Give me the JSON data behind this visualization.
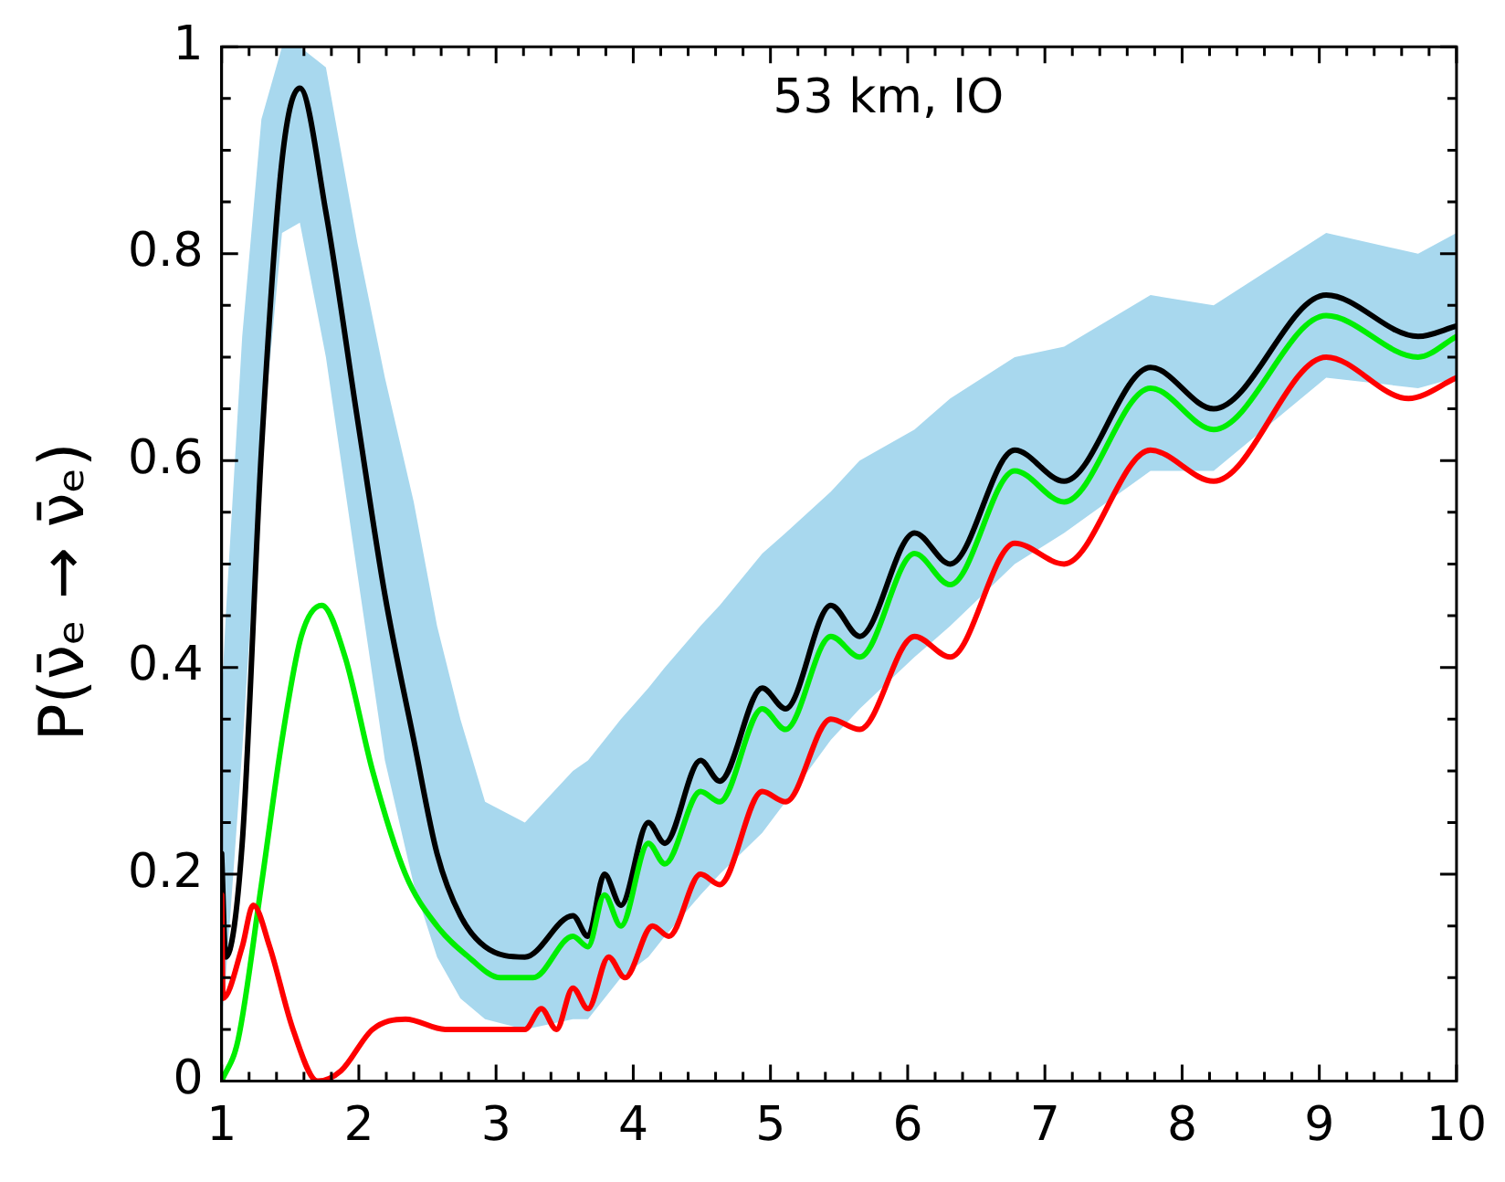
{
  "chart_data": {
    "type": "line",
    "ylabel": "P(ν̄ₑ → ν̄ₑ)",
    "annotations": [
      "53 km, IO"
    ],
    "xlim": [
      1,
      10
    ],
    "xticks": [
      1,
      2,
      3,
      4,
      5,
      6,
      7,
      8,
      9,
      10
    ],
    "ylim": [
      0,
      1
    ],
    "yticks": [
      0,
      {
        "value": 0.2,
        "label": "0.2"
      },
      {
        "value": 0.4,
        "label": "0.4"
      },
      {
        "value": 0.6,
        "label": "0.6"
      },
      {
        "value": 0.8,
        "label": "0.8"
      },
      1
    ],
    "grid": false,
    "legend": false,
    "marker": "none",
    "line_style": "solid",
    "series": [
      {
        "color": "#000000",
        "x": [
          1.0,
          1.03,
          1.15,
          1.29,
          1.44,
          1.57,
          1.76,
          1.99,
          2.19,
          2.4,
          2.57,
          2.74,
          2.92,
          3.21,
          3.56,
          3.67,
          3.79,
          3.91,
          4.11,
          4.23,
          4.49,
          4.63,
          4.94,
          5.11,
          5.44,
          5.65,
          6.05,
          6.31,
          6.78,
          7.14,
          7.77,
          8.23,
          9.05,
          9.72,
          10
        ],
        "values": [
          0.22,
          0.12,
          0.23,
          0.61,
          0.89,
          0.96,
          0.84,
          0.64,
          0.47,
          0.33,
          0.22,
          0.16,
          0.13,
          0.12,
          0.16,
          0.14,
          0.2,
          0.17,
          0.25,
          0.23,
          0.31,
          0.29,
          0.38,
          0.36,
          0.46,
          0.43,
          0.53,
          0.5,
          0.61,
          0.58,
          0.69,
          0.65,
          0.76,
          0.72,
          0.73
        ],
        "upper": [
          0.37,
          0.45,
          0.72,
          0.93,
          1.0,
          1.0,
          0.98,
          0.81,
          0.68,
          0.56,
          0.44,
          0.35,
          0.27,
          0.25,
          0.3,
          0.31,
          0.33,
          0.35,
          0.38,
          0.4,
          0.44,
          0.46,
          0.51,
          0.53,
          0.57,
          0.6,
          0.63,
          0.66,
          0.7,
          0.71,
          0.76,
          0.75,
          0.82,
          0.8,
          0.82
        ],
        "lower": [
          0.06,
          0.1,
          0.32,
          0.61,
          0.82,
          0.83,
          0.7,
          0.49,
          0.31,
          0.19,
          0.12,
          0.08,
          0.06,
          0.05,
          0.06,
          0.06,
          0.08,
          0.1,
          0.12,
          0.14,
          0.18,
          0.2,
          0.24,
          0.27,
          0.33,
          0.36,
          0.41,
          0.44,
          0.5,
          0.53,
          0.59,
          0.59,
          0.68,
          0.67,
          0.68
        ]
      },
      {
        "color": "#00ee00",
        "x": [
          1.0,
          1.12,
          1.29,
          1.44,
          1.58,
          1.73,
          1.9,
          2.1,
          2.34,
          2.57,
          2.8,
          3.03,
          3.27,
          3.56,
          3.67,
          3.79,
          3.91,
          4.11,
          4.23,
          4.49,
          4.63,
          4.94,
          5.11,
          5.44,
          5.65,
          6.05,
          6.31,
          6.78,
          7.14,
          7.77,
          8.23,
          9.05,
          9.72,
          10
        ],
        "values": [
          0.0,
          0.04,
          0.19,
          0.33,
          0.43,
          0.46,
          0.41,
          0.3,
          0.2,
          0.15,
          0.12,
          0.1,
          0.1,
          0.14,
          0.13,
          0.18,
          0.15,
          0.23,
          0.21,
          0.28,
          0.27,
          0.36,
          0.34,
          0.43,
          0.41,
          0.51,
          0.48,
          0.59,
          0.56,
          0.67,
          0.63,
          0.74,
          0.7,
          0.72
        ]
      },
      {
        "color": "#ff0000",
        "x": [
          1.0,
          1.01,
          1.15,
          1.23,
          1.35,
          1.52,
          1.7,
          1.87,
          2.1,
          2.34,
          2.63,
          2.98,
          3.21,
          3.33,
          3.44,
          3.56,
          3.67,
          3.82,
          3.94,
          4.14,
          4.26,
          4.49,
          4.63,
          4.94,
          5.11,
          5.44,
          5.65,
          6.05,
          6.31,
          6.78,
          7.14,
          7.77,
          8.23,
          9.05,
          9.65,
          10
        ],
        "values": [
          0.18,
          0.08,
          0.13,
          0.17,
          0.13,
          0.05,
          0.0,
          0.01,
          0.05,
          0.06,
          0.05,
          0.05,
          0.05,
          0.07,
          0.05,
          0.09,
          0.07,
          0.12,
          0.1,
          0.15,
          0.14,
          0.2,
          0.19,
          0.28,
          0.27,
          0.35,
          0.34,
          0.43,
          0.41,
          0.52,
          0.5,
          0.61,
          0.58,
          0.7,
          0.66,
          0.68
        ]
      }
    ]
  }
}
